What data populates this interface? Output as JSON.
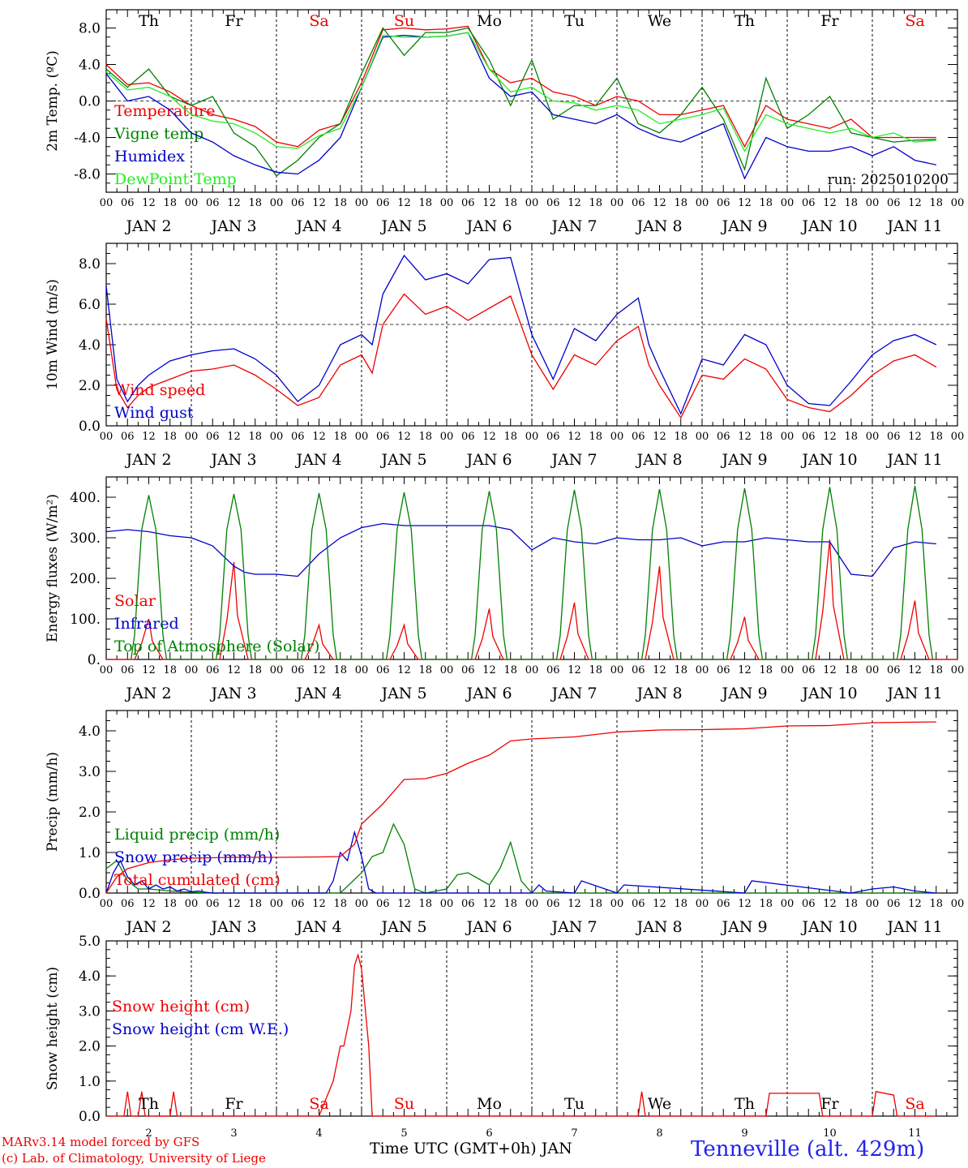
{
  "page": {
    "xaxis_title": "Time UTC (GMT+0h) JAN",
    "credit_lines": [
      "MARv3.14 model forced by GFS",
      "(c) Lab. of Climatology, University of Liege"
    ],
    "station": "Tenneville (alt. 429m)"
  },
  "colors": {
    "red": "#ee0000",
    "green": "#008000",
    "blue": "#0000cc",
    "lightgreen": "#22ee22",
    "weekend": "#ee0000"
  },
  "days": [
    {
      "abbr": "Th",
      "date": "JAN  2",
      "num": "2",
      "weekend": false
    },
    {
      "abbr": "Fr",
      "date": "JAN  3",
      "num": "3",
      "weekend": false
    },
    {
      "abbr": "Sa",
      "date": "JAN  4",
      "num": "4",
      "weekend": true
    },
    {
      "abbr": "Su",
      "date": "JAN  5",
      "num": "5",
      "weekend": true
    },
    {
      "abbr": "Mo",
      "date": "JAN  6",
      "num": "6",
      "weekend": false
    },
    {
      "abbr": "Tu",
      "date": "JAN  7",
      "num": "7",
      "weekend": false
    },
    {
      "abbr": "We",
      "date": "JAN  8",
      "num": "8",
      "weekend": false
    },
    {
      "abbr": "Th",
      "date": "JAN  9",
      "num": "9",
      "weekend": false
    },
    {
      "abbr": "Fr",
      "date": "JAN 10",
      "num": "10",
      "weekend": false
    },
    {
      "abbr": "Sa",
      "date": "JAN 11",
      "num": "11",
      "weekend": true
    }
  ],
  "hour_ticks": [
    "00",
    "06",
    "12",
    "18"
  ],
  "end_tick": "00",
  "chart_data": [
    {
      "type": "line",
      "ylabel": "2m Temp. (ºC)",
      "ylim": [
        -10,
        10
      ],
      "yticks": [
        -8,
        -4,
        0,
        4,
        8
      ],
      "ytick_labels": [
        "-8.0",
        "-4.0",
        "0.0",
        "4.0",
        "8.0"
      ],
      "ref_line": 0,
      "annotation": "run: 2025010200",
      "series": [
        {
          "name": "Temperature",
          "color": "red",
          "x": [
            0,
            6,
            12,
            18,
            24,
            30,
            36,
            42,
            48,
            54,
            60,
            66,
            72,
            78,
            84,
            90,
            96,
            102,
            108,
            114,
            120,
            126,
            132,
            138,
            144,
            150,
            156,
            162,
            168,
            174,
            180,
            186,
            192,
            198,
            204,
            210,
            216,
            222,
            228,
            234
          ],
          "values": [
            4.0,
            1.8,
            2.0,
            1.0,
            -0.5,
            -1.5,
            -2.0,
            -2.8,
            -4.5,
            -5.0,
            -3.2,
            -2.5,
            2.0,
            7.8,
            8.0,
            7.8,
            7.9,
            8.2,
            3.5,
            2.0,
            2.5,
            1.0,
            0.5,
            -0.5,
            0.5,
            0,
            -1.5,
            -1.5,
            -1.0,
            -0.5,
            -5.0,
            -0.5,
            -2.0,
            -2.5,
            -3.0,
            -2.0,
            -4.0,
            -4.0,
            -4.0,
            -4.0
          ]
        },
        {
          "name": "Vigne temp",
          "color": "green",
          "x": [
            0,
            6,
            12,
            18,
            24,
            30,
            36,
            42,
            48,
            54,
            60,
            66,
            72,
            78,
            84,
            90,
            96,
            102,
            108,
            114,
            120,
            126,
            132,
            138,
            144,
            150,
            156,
            162,
            168,
            174,
            180,
            186,
            192,
            198,
            204,
            210,
            216,
            222,
            228,
            234
          ],
          "values": [
            3.5,
            1.5,
            3.5,
            0.5,
            -0.5,
            0.5,
            -3.5,
            -5.0,
            -8.2,
            -6.5,
            -4.0,
            -2.5,
            3.0,
            8.0,
            5.0,
            7.5,
            7.5,
            8.0,
            4.5,
            -0.5,
            4.5,
            -2.0,
            -0.5,
            -0.5,
            2.5,
            -2.5,
            -3.5,
            -1.5,
            1.5,
            -2.0,
            -7.5,
            2.5,
            -3.0,
            -1.5,
            0.5,
            -3.5,
            -4.0,
            -4.5,
            -4.3,
            -4.2
          ]
        },
        {
          "name": "Humidex",
          "color": "blue",
          "x": [
            0,
            6,
            12,
            18,
            24,
            30,
            36,
            42,
            48,
            54,
            60,
            66,
            72,
            78,
            84,
            90,
            96,
            102,
            108,
            114,
            120,
            126,
            132,
            138,
            144,
            150,
            156,
            162,
            168,
            174,
            180,
            186,
            192,
            198,
            204,
            210,
            216,
            222,
            228,
            234
          ],
          "values": [
            3.0,
            0.0,
            0.5,
            -1.0,
            -3.5,
            -4.5,
            -6.0,
            -7.0,
            -7.8,
            -8.0,
            -6.5,
            -4.0,
            1.5,
            7.0,
            7.2,
            7.0,
            7.1,
            7.5,
            2.5,
            0.5,
            1.0,
            -1.5,
            -2.0,
            -2.5,
            -1.5,
            -3.0,
            -4.0,
            -4.5,
            -3.5,
            -2.5,
            -8.5,
            -4.0,
            -5.0,
            -5.5,
            -5.5,
            -5.0,
            -6.0,
            -5.0,
            -6.5,
            -7.0
          ]
        },
        {
          "name": "DewPoint Temp",
          "color": "lightgreen",
          "x": [
            0,
            6,
            12,
            18,
            24,
            30,
            36,
            42,
            48,
            54,
            60,
            66,
            72,
            78,
            84,
            90,
            96,
            102,
            108,
            114,
            120,
            126,
            132,
            138,
            144,
            150,
            156,
            162,
            168,
            174,
            180,
            186,
            192,
            198,
            204,
            210,
            216,
            222,
            228,
            234
          ],
          "values": [
            3.2,
            1.2,
            1.5,
            0.5,
            -1.5,
            -2.2,
            -2.5,
            -3.5,
            -5.0,
            -5.2,
            -3.8,
            -3.0,
            1.5,
            7.2,
            7.0,
            7.0,
            7.1,
            7.5,
            3.5,
            1.0,
            1.5,
            0.0,
            -0.2,
            -1.0,
            -0.5,
            -1.0,
            -2.5,
            -2.0,
            -1.5,
            -0.8,
            -5.5,
            -1.5,
            -2.5,
            -3.0,
            -3.5,
            -3.0,
            -4.0,
            -3.5,
            -4.5,
            -4.3
          ]
        }
      ]
    },
    {
      "type": "line",
      "ylabel": "10m Wind (m/s)",
      "ylim": [
        0,
        9
      ],
      "yticks": [
        0,
        2,
        4,
        6,
        8
      ],
      "ytick_labels": [
        "0.0",
        "2.0",
        "4.0",
        "6.0",
        "8.0"
      ],
      "ref_line": 5,
      "series": [
        {
          "name": "Wind speed",
          "color": "red",
          "x": [
            0,
            3,
            6,
            9,
            12,
            18,
            24,
            30,
            36,
            42,
            48,
            54,
            60,
            66,
            72,
            75,
            78,
            84,
            90,
            96,
            102,
            108,
            114,
            120,
            126,
            132,
            138,
            144,
            150,
            153,
            156,
            162,
            168,
            174,
            180,
            186,
            192,
            198,
            204,
            210,
            216,
            222,
            228,
            234
          ],
          "values": [
            5.3,
            1.8,
            0.9,
            1.5,
            1.9,
            2.3,
            2.7,
            2.8,
            3.0,
            2.5,
            1.8,
            1.0,
            1.4,
            3.0,
            3.5,
            2.6,
            5.0,
            6.5,
            5.5,
            5.9,
            5.2,
            5.8,
            6.4,
            3.5,
            1.8,
            3.5,
            3.0,
            4.2,
            4.9,
            3.0,
            2.0,
            0.4,
            2.5,
            2.3,
            3.3,
            2.8,
            1.3,
            0.9,
            0.7,
            1.5,
            2.5,
            3.2,
            3.5,
            2.9
          ]
        },
        {
          "name": "Wind gust",
          "color": "blue",
          "x": [
            0,
            3,
            6,
            9,
            12,
            18,
            24,
            30,
            36,
            42,
            48,
            54,
            60,
            66,
            72,
            75,
            78,
            84,
            90,
            96,
            102,
            108,
            114,
            120,
            126,
            132,
            138,
            144,
            150,
            153,
            156,
            162,
            168,
            174,
            180,
            186,
            192,
            198,
            204,
            210,
            216,
            222,
            228,
            234
          ],
          "values": [
            6.9,
            2.3,
            1.2,
            2.0,
            2.5,
            3.2,
            3.5,
            3.7,
            3.8,
            3.3,
            2.5,
            1.2,
            2.0,
            4.0,
            4.5,
            4.0,
            6.5,
            8.4,
            7.2,
            7.5,
            7.0,
            8.2,
            8.3,
            4.5,
            2.3,
            4.8,
            4.2,
            5.5,
            6.3,
            4.0,
            2.8,
            0.6,
            3.3,
            3.0,
            4.5,
            4.0,
            2.0,
            1.1,
            1.0,
            2.2,
            3.5,
            4.2,
            4.5,
            4.0
          ]
        }
      ]
    },
    {
      "type": "line",
      "ylabel": "Energy fluxes (W/m²)",
      "ylim": [
        0,
        450
      ],
      "yticks": [
        0,
        100,
        200,
        300,
        400
      ],
      "ytick_labels": [
        "0.",
        "100.",
        "200.",
        "300.",
        "400."
      ],
      "solar_peaks": [
        100,
        240,
        85,
        85,
        125,
        140,
        230,
        105,
        295,
        145
      ],
      "toa_peaks": [
        405,
        408,
        410,
        412,
        415,
        418,
        420,
        422,
        425,
        428
      ],
      "series": [
        {
          "name": "Solar",
          "color": "red"
        },
        {
          "name": "Infrared",
          "color": "blue",
          "x": [
            0,
            6,
            12,
            18,
            24,
            30,
            36,
            39,
            42,
            48,
            54,
            60,
            66,
            72,
            78,
            84,
            90,
            96,
            102,
            108,
            114,
            120,
            126,
            132,
            138,
            144,
            150,
            156,
            162,
            168,
            174,
            180,
            186,
            192,
            198,
            204,
            210,
            216,
            222,
            228,
            234
          ],
          "values": [
            315,
            320,
            315,
            305,
            300,
            280,
            230,
            215,
            210,
            210,
            205,
            260,
            300,
            325,
            335,
            330,
            330,
            330,
            330,
            330,
            320,
            270,
            300,
            290,
            285,
            300,
            295,
            295,
            300,
            280,
            290,
            290,
            300,
            295,
            290,
            290,
            210,
            205,
            275,
            290,
            285
          ]
        },
        {
          "name": "Top of Atmosphere (Solar)",
          "color": "green"
        }
      ]
    },
    {
      "type": "line",
      "ylabel": "Precip (mm/h)",
      "ylim": [
        0,
        4.5
      ],
      "yticks": [
        0,
        1,
        2,
        3,
        4
      ],
      "ytick_labels": [
        "0.0",
        "1.0",
        "2.0",
        "3.0",
        "4.0"
      ],
      "series": [
        {
          "name": "Liquid precip (mm/h)",
          "color": "green",
          "x": [
            0,
            3,
            6,
            9,
            12,
            18,
            24,
            30,
            66,
            72,
            75,
            78,
            81,
            84,
            87,
            90,
            96,
            99,
            102,
            105,
            108,
            111,
            114,
            117,
            120,
            234
          ],
          "values": [
            0.6,
            0.8,
            0.3,
            0.1,
            0.1,
            0.05,
            0.02,
            0,
            0,
            0.5,
            0.9,
            1.0,
            1.7,
            1.2,
            0.1,
            0,
            0.1,
            0.45,
            0.5,
            0.35,
            0.2,
            0.6,
            1.25,
            0.3,
            0,
            0
          ]
        },
        {
          "name": "Snow precip (mm/h)",
          "color": "blue",
          "x": [
            0,
            2,
            4,
            6,
            8,
            10,
            12,
            14,
            16,
            18,
            20,
            22,
            24,
            26,
            28,
            30,
            34,
            62,
            64,
            66,
            68,
            70,
            72,
            74,
            76,
            120,
            122,
            124,
            132,
            134,
            144,
            146,
            180,
            182,
            210,
            216,
            222,
            228,
            234
          ],
          "values": [
            0,
            0.5,
            0.8,
            0.4,
            0.2,
            0.3,
            0.1,
            0.2,
            0.1,
            0.15,
            0.05,
            0.1,
            0.03,
            0.05,
            0.02,
            0,
            0,
            0,
            0.3,
            1.0,
            0.8,
            1.5,
            0.9,
            0.1,
            0,
            0,
            0.2,
            0.05,
            0,
            0.3,
            0,
            0.2,
            0,
            0.3,
            0,
            0.1,
            0.15,
            0.05,
            0
          ]
        },
        {
          "name": "Total cumulated (cm)",
          "color": "red",
          "x": [
            0,
            3,
            6,
            12,
            18,
            24,
            36,
            48,
            60,
            66,
            70,
            72,
            78,
            84,
            90,
            96,
            102,
            108,
            114,
            120,
            132,
            144,
            156,
            168,
            180,
            192,
            204,
            216,
            234
          ],
          "values": [
            0,
            0.4,
            0.6,
            0.75,
            0.82,
            0.86,
            0.88,
            0.88,
            0.89,
            0.9,
            1.2,
            1.7,
            2.2,
            2.8,
            2.82,
            2.95,
            3.2,
            3.4,
            3.75,
            3.8,
            3.85,
            3.97,
            4.02,
            4.03,
            4.05,
            4.12,
            4.13,
            4.2,
            4.22
          ]
        }
      ]
    },
    {
      "type": "line",
      "ylabel": "Snow height (cm)",
      "ylim": [
        0,
        5
      ],
      "yticks": [
        0,
        1,
        2,
        3,
        4,
        5
      ],
      "ytick_labels": [
        "0.0",
        "1.0",
        "2.0",
        "3.0",
        "4.0",
        "5.0"
      ],
      "series": [
        {
          "name": "Snow height (cm)",
          "color": "red",
          "x": [
            0,
            5,
            6,
            7,
            9,
            10,
            11,
            18,
            19,
            20,
            60,
            64,
            66,
            67,
            69,
            70,
            71,
            72,
            74,
            75,
            76,
            150,
            151,
            152,
            162,
            186,
            187,
            195,
            201,
            202,
            216,
            217,
            222,
            223,
            234
          ],
          "values": [
            0,
            0,
            0.7,
            0,
            0,
            0.7,
            0,
            0,
            0.7,
            0,
            0,
            1.0,
            2.0,
            2.0,
            3.0,
            4.3,
            4.6,
            4.2,
            2.0,
            0,
            0,
            0,
            0.7,
            0,
            0,
            0,
            0.65,
            0.65,
            0.65,
            0,
            0,
            0.7,
            0.6,
            0,
            0
          ]
        },
        {
          "name": "Snow height (cm W.E.)",
          "color": "blue"
        }
      ]
    }
  ]
}
